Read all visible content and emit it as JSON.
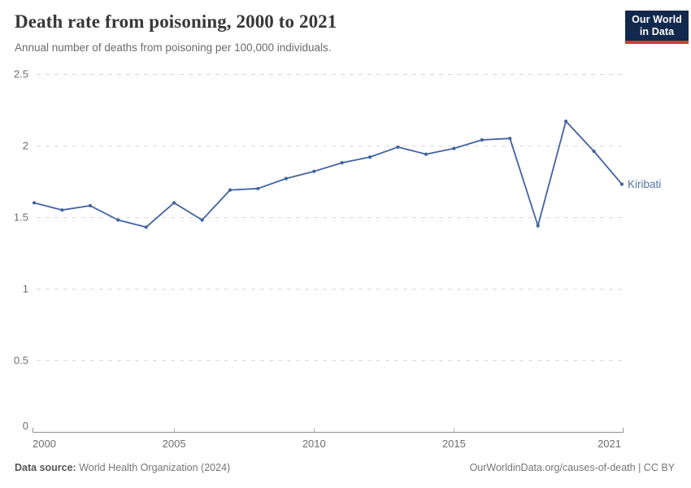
{
  "header": {
    "title": "Death rate from poisoning, 2000 to 2021",
    "subtitle": "Annual number of deaths from poisoning per 100,000 individuals.",
    "logo": {
      "line1": "Our World",
      "line2": "in Data",
      "bg_color": "#12294d",
      "bar_color": "#d93a2e"
    }
  },
  "chart_data": {
    "type": "line",
    "title": "Death rate from poisoning, 2000 to 2021",
    "xlabel": "",
    "ylabel": "",
    "xlim": [
      2000,
      2021
    ],
    "ylim": [
      0,
      2.5
    ],
    "grid": "horizontal-dashed",
    "legend_position": "end-of-line-label",
    "x": [
      2000,
      2001,
      2002,
      2003,
      2004,
      2005,
      2006,
      2007,
      2008,
      2009,
      2010,
      2011,
      2012,
      2013,
      2014,
      2015,
      2016,
      2017,
      2018,
      2019,
      2020,
      2021
    ],
    "series": [
      {
        "name": "Kiribati",
        "color": "#4263a0",
        "label_color": "#54749f",
        "values": [
          1.6,
          1.55,
          1.58,
          1.48,
          1.43,
          1.6,
          1.48,
          1.69,
          1.7,
          1.77,
          1.82,
          1.88,
          1.92,
          1.99,
          1.94,
          1.98,
          2.04,
          2.05,
          1.44,
          2.17,
          1.96,
          1.73
        ]
      }
    ],
    "x_ticks": [
      {
        "value": 2000,
        "label": "2000",
        "align": "start"
      },
      {
        "value": 2005,
        "label": "2005",
        "align": "middle"
      },
      {
        "value": 2010,
        "label": "2010",
        "align": "middle"
      },
      {
        "value": 2015,
        "label": "2015",
        "align": "middle"
      },
      {
        "value": 2021,
        "label": "2021",
        "align": "end"
      }
    ],
    "y_ticks": [
      {
        "value": 0,
        "label": "0"
      },
      {
        "value": 0.5,
        "label": "0.5"
      },
      {
        "value": 1,
        "label": "1"
      },
      {
        "value": 1.5,
        "label": "1.5"
      },
      {
        "value": 2,
        "label": "2"
      },
      {
        "value": 2.5,
        "label": "2.5"
      }
    ]
  },
  "footer": {
    "source_label": "Data source:",
    "source_text": " World Health Organization (2024)",
    "rights": "OurWorldinData.org/causes-of-death | CC BY"
  }
}
